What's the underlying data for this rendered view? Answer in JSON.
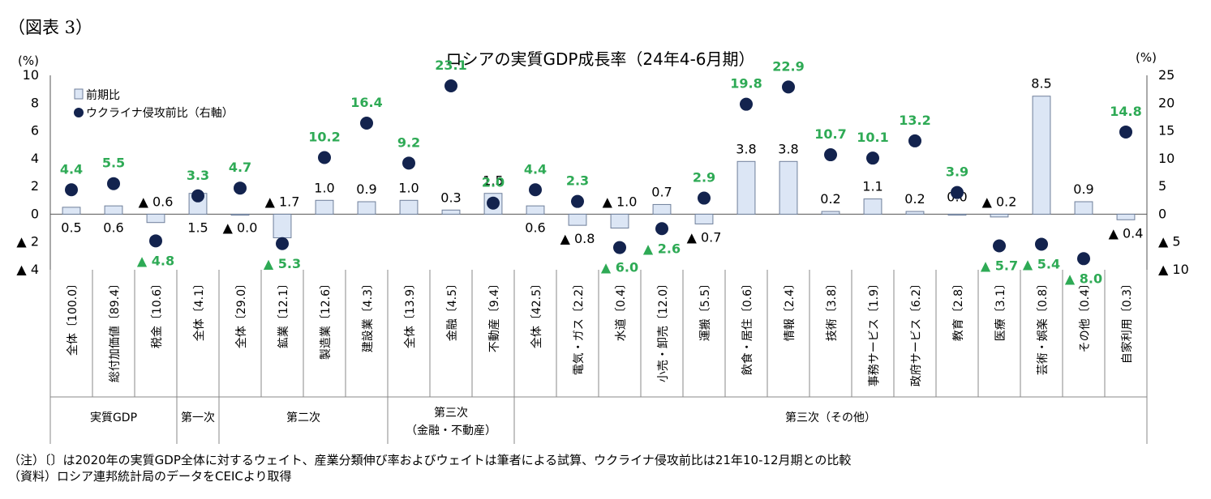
{
  "figure_label": "（図表 3）",
  "notes": {
    "note": "（注）〔〕は2020年の実質GDP全体に対するウェイト、産業分類伸び率およびウェイトは筆者による試算、ウクライナ侵攻前比は21年10-12月期との比較",
    "source": "（資料）ロシア連邦統計局のデータをCEICより取得"
  },
  "chart_data": {
    "type": "bar",
    "title": "ロシアの実質GDP成長率（24年4-6月期）",
    "left_axis": {
      "unit": "(%)",
      "ylim": [
        -4,
        10
      ],
      "ticks": [
        10,
        8,
        6,
        4,
        2,
        0,
        -2,
        -4
      ],
      "tick_labels": [
        "10",
        "8",
        "6",
        "4",
        "2",
        "0",
        "▲ 2",
        "▲ 4"
      ]
    },
    "right_axis": {
      "unit": "(%)",
      "ylim": [
        -10,
        25
      ],
      "ticks": [
        25,
        20,
        15,
        10,
        5,
        0,
        -5,
        -10
      ],
      "tick_labels": [
        "25",
        "20",
        "15",
        "10",
        "5",
        "0",
        "▲ 5",
        "▲ 10"
      ]
    },
    "categories": [
      "全体〔100.0〕",
      "総付加価値〔89.4〕",
      "税金〔10.6〕",
      "全体〔4.1〕",
      "全体〔29.0〕",
      "鉱業〔12.1〕",
      "製造業〔12.6〕",
      "建設業〔4.3〕",
      "全体〔13.9〕",
      "金融〔4.5〕",
      "不動産〔9.4〕",
      "全体〔42.5〕",
      "電気・ガス〔2.2〕",
      "水道〔0.4〕",
      "小売・卸売〔12.0〕",
      "運搬〔5.5〕",
      "飲食・居住〔0.6〕",
      "情報〔2.4〕",
      "技術〔3.8〕",
      "事務サービス〔1.9〕",
      "政府サービス〔6.2〕",
      "教育〔2.8〕",
      "医療〔3.1〕",
      "芸術・娯楽〔0.8〕",
      "その他〔0.4〕",
      "自家利用〔0.3〕"
    ],
    "groups": [
      {
        "label": "実質GDP",
        "start": 0,
        "end": 2
      },
      {
        "label": "第一次",
        "start": 3,
        "end": 3
      },
      {
        "label": "第二次",
        "start": 4,
        "end": 7
      },
      {
        "label": "第三次",
        "label2": "（金融・不動産）",
        "start": 8,
        "end": 10
      },
      {
        "label": "第三次（その他）",
        "start": 11,
        "end": 25
      }
    ],
    "series": [
      {
        "name": "前期比",
        "axis": "left",
        "kind": "bar",
        "color": "#dce6f5",
        "edge": "#6f7f9a",
        "values": [
          0.5,
          0.6,
          -0.6,
          1.5,
          0.0,
          -1.7,
          1.0,
          0.9,
          1.0,
          0.3,
          1.5,
          0.6,
          -0.8,
          -1.0,
          0.7,
          -0.7,
          3.8,
          3.8,
          0.2,
          1.1,
          0.2,
          0.0,
          -0.2,
          8.5,
          0.9,
          -0.4
        ],
        "labels": [
          "0.5",
          "0.6",
          "▲ 0.6",
          "1.5",
          "▲ 0.0",
          "▲ 1.7",
          "1.0",
          "0.9",
          "1.0",
          "0.3",
          "1.5",
          "0.6",
          "▲ 0.8",
          "▲ 1.0",
          "0.7",
          "▲ 0.7",
          "3.8",
          "3.8",
          "0.2",
          "1.1",
          "0.2",
          "0.0",
          "▲ 0.2",
          "8.5",
          "0.9",
          "▲ 0.4"
        ]
      },
      {
        "name": "ウクライナ侵攻前比（右軸）",
        "axis": "right",
        "kind": "dot",
        "color": "#13234e",
        "label_color": "#2eaa55",
        "values": [
          4.4,
          5.5,
          -4.8,
          3.3,
          4.7,
          -5.3,
          10.2,
          16.4,
          9.2,
          23.1,
          2.0,
          4.4,
          2.3,
          -6.0,
          -2.6,
          2.9,
          19.8,
          22.9,
          10.7,
          10.1,
          13.2,
          3.9,
          -5.7,
          -5.4,
          -8.0,
          14.8
        ],
        "labels": [
          "4.4",
          "5.5",
          "▲ 4.8",
          "3.3",
          "4.7",
          "▲ 5.3",
          "10.2",
          "16.4",
          "9.2",
          "23.1",
          "2.0",
          "4.4",
          "2.3",
          "▲ 6.0",
          "▲ 2.6",
          "2.9",
          "19.8",
          "22.9",
          "10.7",
          "10.1",
          "13.2",
          "3.9",
          "▲ 5.7",
          "▲ 5.4",
          "▲ 8.0",
          "14.8"
        ]
      }
    ],
    "legend": {
      "placement": "top-left"
    }
  }
}
